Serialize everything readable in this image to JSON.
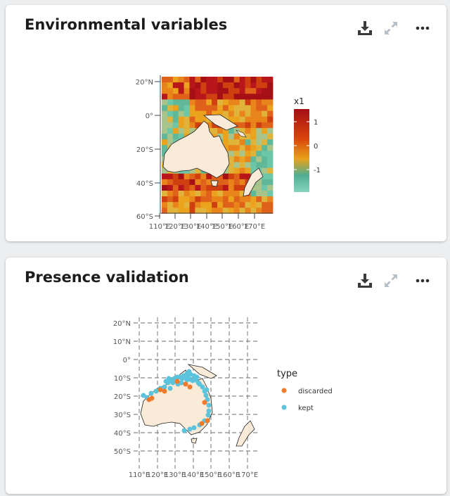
{
  "cards": {
    "env": {
      "title": "Environmental variables"
    },
    "presence": {
      "title": "Presence validation"
    }
  },
  "icons": {
    "download": "download-icon",
    "expand": "expand-icon",
    "more": "more-icon"
  },
  "colors": {
    "land": "#faebd8",
    "discarded": "#f07a2c",
    "kept": "#5cc3dc",
    "scale_high": "#a50f15",
    "scale_mid": "#e8a218",
    "scale_low": "#6cc6a8"
  },
  "env_map": {
    "lat_ticks": [
      "20°N",
      "0°",
      "20°S",
      "40°S",
      "60°S"
    ],
    "lon_ticks": [
      "110°E",
      "120°E",
      "130°E",
      "140°E",
      "150°E",
      "160°E",
      "170°E"
    ],
    "legend_title": "x1",
    "legend_ticks": [
      "1",
      "0",
      "-1"
    ]
  },
  "presence_map": {
    "lat_ticks": [
      "20°N",
      "10°N",
      "0°",
      "10°S",
      "20°S",
      "30°S",
      "40°S",
      "50°S"
    ],
    "lon_ticks": [
      "110°E",
      "120°E",
      "130°E",
      "140°E",
      "150°E",
      "160°E",
      "170°E"
    ],
    "legend_title": "type",
    "legend_items": [
      {
        "label": "discarded",
        "color": "#f07a2c"
      },
      {
        "label": "kept",
        "color": "#5cc3dc"
      }
    ]
  }
}
